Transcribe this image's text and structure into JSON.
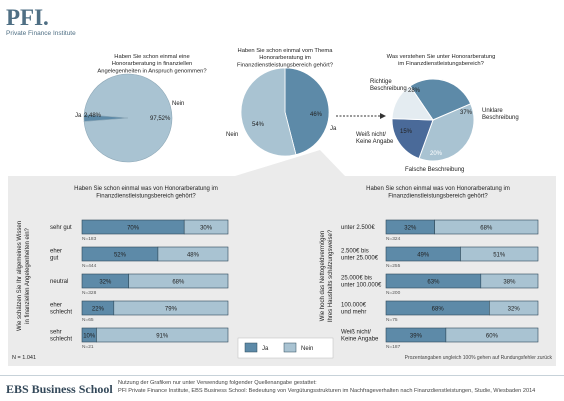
{
  "header": {
    "logo": "PFI.",
    "logo_subtitle": "Private Finance Institute"
  },
  "colors": {
    "ja": "#5d8aa8",
    "nein": "#a9c3d2",
    "dark": "#4a6a99",
    "light": "#e4ecf1",
    "panel": "#ebebeb"
  },
  "chart_data": [
    {
      "type": "pie",
      "title": "Haben Sie schon einmal eine Honorarberatung in finanziellen Angelegenheiten in Anspruch genommen?",
      "title_lines": [
        "Haben Sie schon einmal eine",
        "Honorarberatung in finanziellen",
        "Angelegenheiten in Anspruch genommen?"
      ],
      "slices": [
        {
          "label": "Ja",
          "value": 2.48,
          "value_label": "2,48%"
        },
        {
          "label": "Nein",
          "value": 97.52,
          "value_label": "97,52%"
        }
      ]
    },
    {
      "type": "pie",
      "title": "Haben Sie schon einmal vom Thema Honorarberatung im Finanzdienstleistungsbereich gehört?",
      "title_lines": [
        "Haben Sie schon einmal vom Thema",
        "Honorarberatung im",
        "Finanzdienstleistungsbereich gehört?"
      ],
      "slices": [
        {
          "label": "Ja",
          "value": 46,
          "value_label": "46%"
        },
        {
          "label": "Nein",
          "value": 54,
          "value_label": "54%"
        }
      ]
    },
    {
      "type": "pie",
      "title": "Was verstehen Sie unter Honorarberatung im Finanzdienstleistungsbereich?",
      "title_lines": [
        "Was verstehen Sie unter Honorarberatung",
        "im Finanzdienstleistungsbereich?"
      ],
      "slices": [
        {
          "label": "Richtige Beschreibung",
          "label_lines": [
            "Richtige",
            "Beschreibung"
          ],
          "value": 28,
          "value_label": "28%"
        },
        {
          "label": "Unklare Beschreibung",
          "label_lines": [
            "Unklare",
            "Beschreibung"
          ],
          "value": 37,
          "value_label": "37%"
        },
        {
          "label": "Falsche Beschreibung",
          "label_lines": [
            "Falsche Beschreibung"
          ],
          "value": 20,
          "value_label": "20%"
        },
        {
          "label": "Weiß nicht/ Keine Angabe",
          "label_lines": [
            "Weiß nicht/",
            "Keine Angabe"
          ],
          "value": 15,
          "value_label": "15%"
        }
      ]
    },
    {
      "type": "bar",
      "stacked": true,
      "orientation": "horizontal",
      "title": "Haben Sie schon einmal was von Honorarberatung im Finanzdienstleistungsbereich gehört?",
      "title_lines": [
        "Haben Sie schon einmal was von Honorarberatung im",
        "Finanzdienstleistungsbereich gehört?"
      ],
      "ylabel": "Wie schätzen Sie Ihr allgemeines Wissen in finanziellen Angelegenheiten ein?",
      "ylabel_lines": [
        "Wie schätzen Sie Ihr allgemeines Wissen",
        "in finanziellen Angelegenheiten ein?"
      ],
      "categories": [
        "sehr gut",
        "eher gut",
        "neutral",
        "eher schlecht",
        "sehr schlecht"
      ],
      "category_lines": [
        [
          "sehr gut"
        ],
        [
          "eher",
          "gut"
        ],
        [
          "neutral"
        ],
        [
          "eher",
          "schlecht"
        ],
        [
          "sehr",
          "schlecht"
        ]
      ],
      "n": [
        "N=183",
        "N=444",
        "N=328",
        "N=65",
        "N=21"
      ],
      "series": [
        {
          "name": "Ja",
          "values": [
            70,
            52,
            32,
            22,
            10
          ]
        },
        {
          "name": "Nein",
          "values": [
            30,
            48,
            68,
            79,
            91
          ]
        }
      ],
      "xlim": [
        0,
        100
      ]
    },
    {
      "type": "bar",
      "stacked": true,
      "orientation": "horizontal",
      "title": "Haben Sie schon einmal was von Honorarberatung im Finanzdienstleistungsbereich gehört?",
      "title_lines": [
        "Haben Sie schon einmal was von Honorarberatung im",
        "Finanzdienstleistungsbereich gehört?"
      ],
      "ylabel": "Wie hoch das Nettogeldvermögen Ihres Haushalts schätzungsweise?",
      "ylabel_lines": [
        "Wie hoch das Nettogeldvermögen",
        "Ihres Haushalts schätzungsweise?"
      ],
      "categories": [
        "unter 2.500€",
        "2.500€ bis unter 25.000€",
        "25.000€ bis unter 100.000€",
        "100.000€ und mehr",
        "Weiß nicht/ Keine Angabe"
      ],
      "category_lines": [
        [
          "unter 2.500€"
        ],
        [
          "2.500€ bis",
          "unter 25.000€"
        ],
        [
          "25.000€ bis",
          "unter 100.000€"
        ],
        [
          "100.000€",
          "und mehr"
        ],
        [
          "Weiß nicht/",
          "Keine Angabe"
        ]
      ],
      "n": [
        "N=324",
        "N=255",
        "N=200",
        "N=75",
        "N=187"
      ],
      "series": [
        {
          "name": "Ja",
          "values": [
            32,
            49,
            63,
            68,
            39
          ]
        },
        {
          "name": "Nein",
          "values": [
            68,
            51,
            38,
            32,
            60
          ]
        }
      ],
      "xlim": [
        0,
        100
      ]
    }
  ],
  "legend": {
    "ja": "Ja",
    "nein": "Nein"
  },
  "notes": {
    "n_total": "N = 1.041",
    "rounding": "Prozentangaben ungleich 100% gehen auf Rundungsfehler zurück"
  },
  "footer": {
    "brand": "EBS Business School",
    "source_line1": "Nutzung der Grafiken nur unter Verwendung folgender Quellenangabe gestattet:",
    "source_line2": "PFI Private Finance Institute, EBS Business School: Bedeutung von Vergütungsstrukturen im Nachfrageverhalten nach Finanzdienstleistungen, Studie, Wiesbaden 2014"
  }
}
